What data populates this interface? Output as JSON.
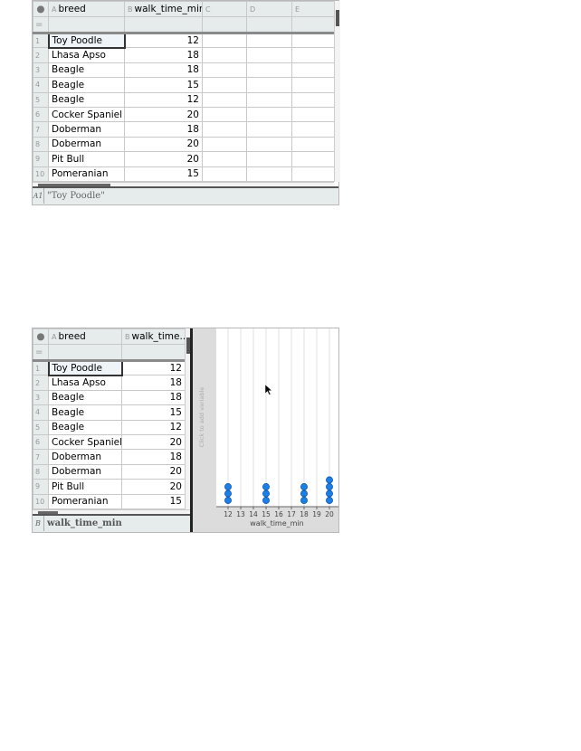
{
  "sheet1": {
    "columns": [
      {
        "letter": "A",
        "name": "breed"
      },
      {
        "letter": "B",
        "name": "walk_time_min"
      },
      {
        "letter": "C",
        "name": ""
      },
      {
        "letter": "D",
        "name": ""
      },
      {
        "letter": "E",
        "name": ""
      }
    ],
    "rows": [
      [
        "1",
        "Toy Poodle",
        "12"
      ],
      [
        "2",
        "Lhasa Apso",
        "18"
      ],
      [
        "3",
        "Beagle",
        "18"
      ],
      [
        "4",
        "Beagle",
        "15"
      ],
      [
        "5",
        "Beagle",
        "12"
      ],
      [
        "6",
        "Cocker Spaniel",
        "20"
      ],
      [
        "7",
        "Doberman",
        "18"
      ],
      [
        "8",
        "Doberman",
        "20"
      ],
      [
        "9",
        "Pit Bull",
        "20"
      ],
      [
        "10",
        "Pomeranian",
        "15"
      ]
    ],
    "formula_row_symbol": "=",
    "status_ref": "A1",
    "status_value": "\"Toy Poodle\""
  },
  "sheet2": {
    "columns": [
      {
        "letter": "A",
        "name": "breed"
      },
      {
        "letter": "B",
        "name": "walk_time..."
      }
    ],
    "status_ref": "B",
    "status_value": "walk_time_min"
  },
  "graph": {
    "add_variable_hint": "Click to add variable",
    "dot_color": "#1a7fe8"
  },
  "chart_data": {
    "type": "scatter",
    "subtype": "dot plot",
    "xlabel": "walk_time_min",
    "xlim": [
      12,
      20
    ],
    "xticks": [
      "12",
      "13",
      "14",
      "15",
      "16",
      "17",
      "18",
      "19",
      "20"
    ],
    "grid": true,
    "points": [
      {
        "x": 12,
        "count": 3
      },
      {
        "x": 15,
        "count": 3
      },
      {
        "x": 18,
        "count": 3
      },
      {
        "x": 20,
        "count": 4
      }
    ]
  }
}
